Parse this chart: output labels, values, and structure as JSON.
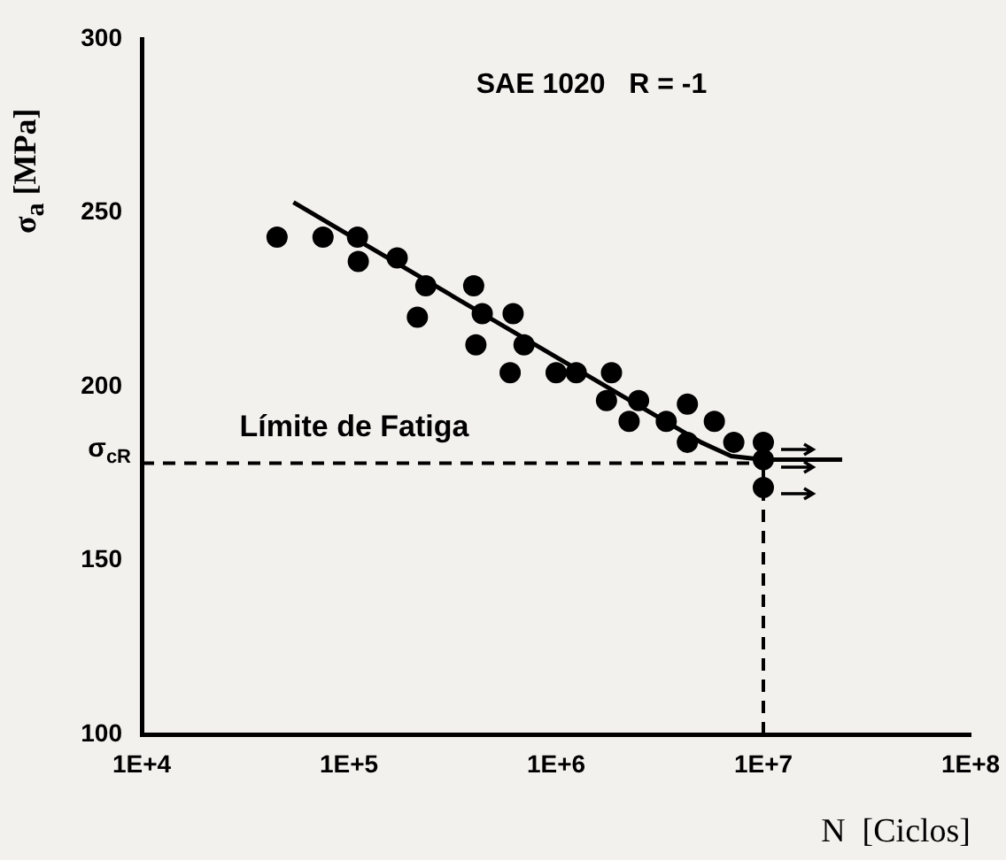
{
  "chart_data": {
    "type": "scatter",
    "title": "SAE 1020   R = -1",
    "xlabel": "N  [Ciclos]",
    "ylabel": "σ$_{a}$  [MPa]",
    "log": "x",
    "xlim": [
      10000,
      100000000
    ],
    "ylim": [
      100,
      300
    ],
    "xticks": [
      {
        "value": 10000,
        "label": "1E+4"
      },
      {
        "value": 100000,
        "label": "1E+5"
      },
      {
        "value": 1000000,
        "label": "1E+6"
      },
      {
        "value": 10000000,
        "label": "1E+7"
      },
      {
        "value": 100000000,
        "label": "1E+8"
      }
    ],
    "yticks": [
      100,
      150,
      200,
      250,
      300
    ],
    "grid": false,
    "legend": false,
    "marker": "circle",
    "series": [
      {
        "color": "#000000",
        "x": [
          45000,
          75000,
          110000,
          111000,
          171000,
          235000,
          214000,
          400000,
          440000,
          620000,
          410000,
          700000,
          600000,
          1000000,
          1250000,
          1850000,
          1750000,
          2500000,
          2250000,
          3400000,
          4300000,
          5800000,
          4300000,
          7200000,
          10000000,
          10000000,
          10000000
        ],
        "values": [
          243,
          243,
          243,
          236,
          237,
          229,
          220,
          229,
          221,
          221,
          212,
          212,
          204,
          204,
          204,
          204,
          196,
          196,
          190,
          190,
          195,
          190,
          184,
          184,
          184,
          179,
          171
        ]
      },
      {
        "type": "line",
        "color": "#000000",
        "marker": "none",
        "x": [
          54000,
          5000000,
          7000000,
          10000000,
          24000000
        ],
        "values": [
          253,
          184,
          180,
          179,
          179
        ]
      }
    ],
    "ref_lines": [
      {
        "axis": "y",
        "value": 178,
        "label": "σ$_{cR}$",
        "line_style": "dashed",
        "color": "#000000"
      },
      {
        "axis": "x",
        "value": 10000000,
        "line_style": "dashed",
        "color": "#000000"
      }
    ],
    "annotations": [
      "Límite de Fatiga"
    ]
  }
}
